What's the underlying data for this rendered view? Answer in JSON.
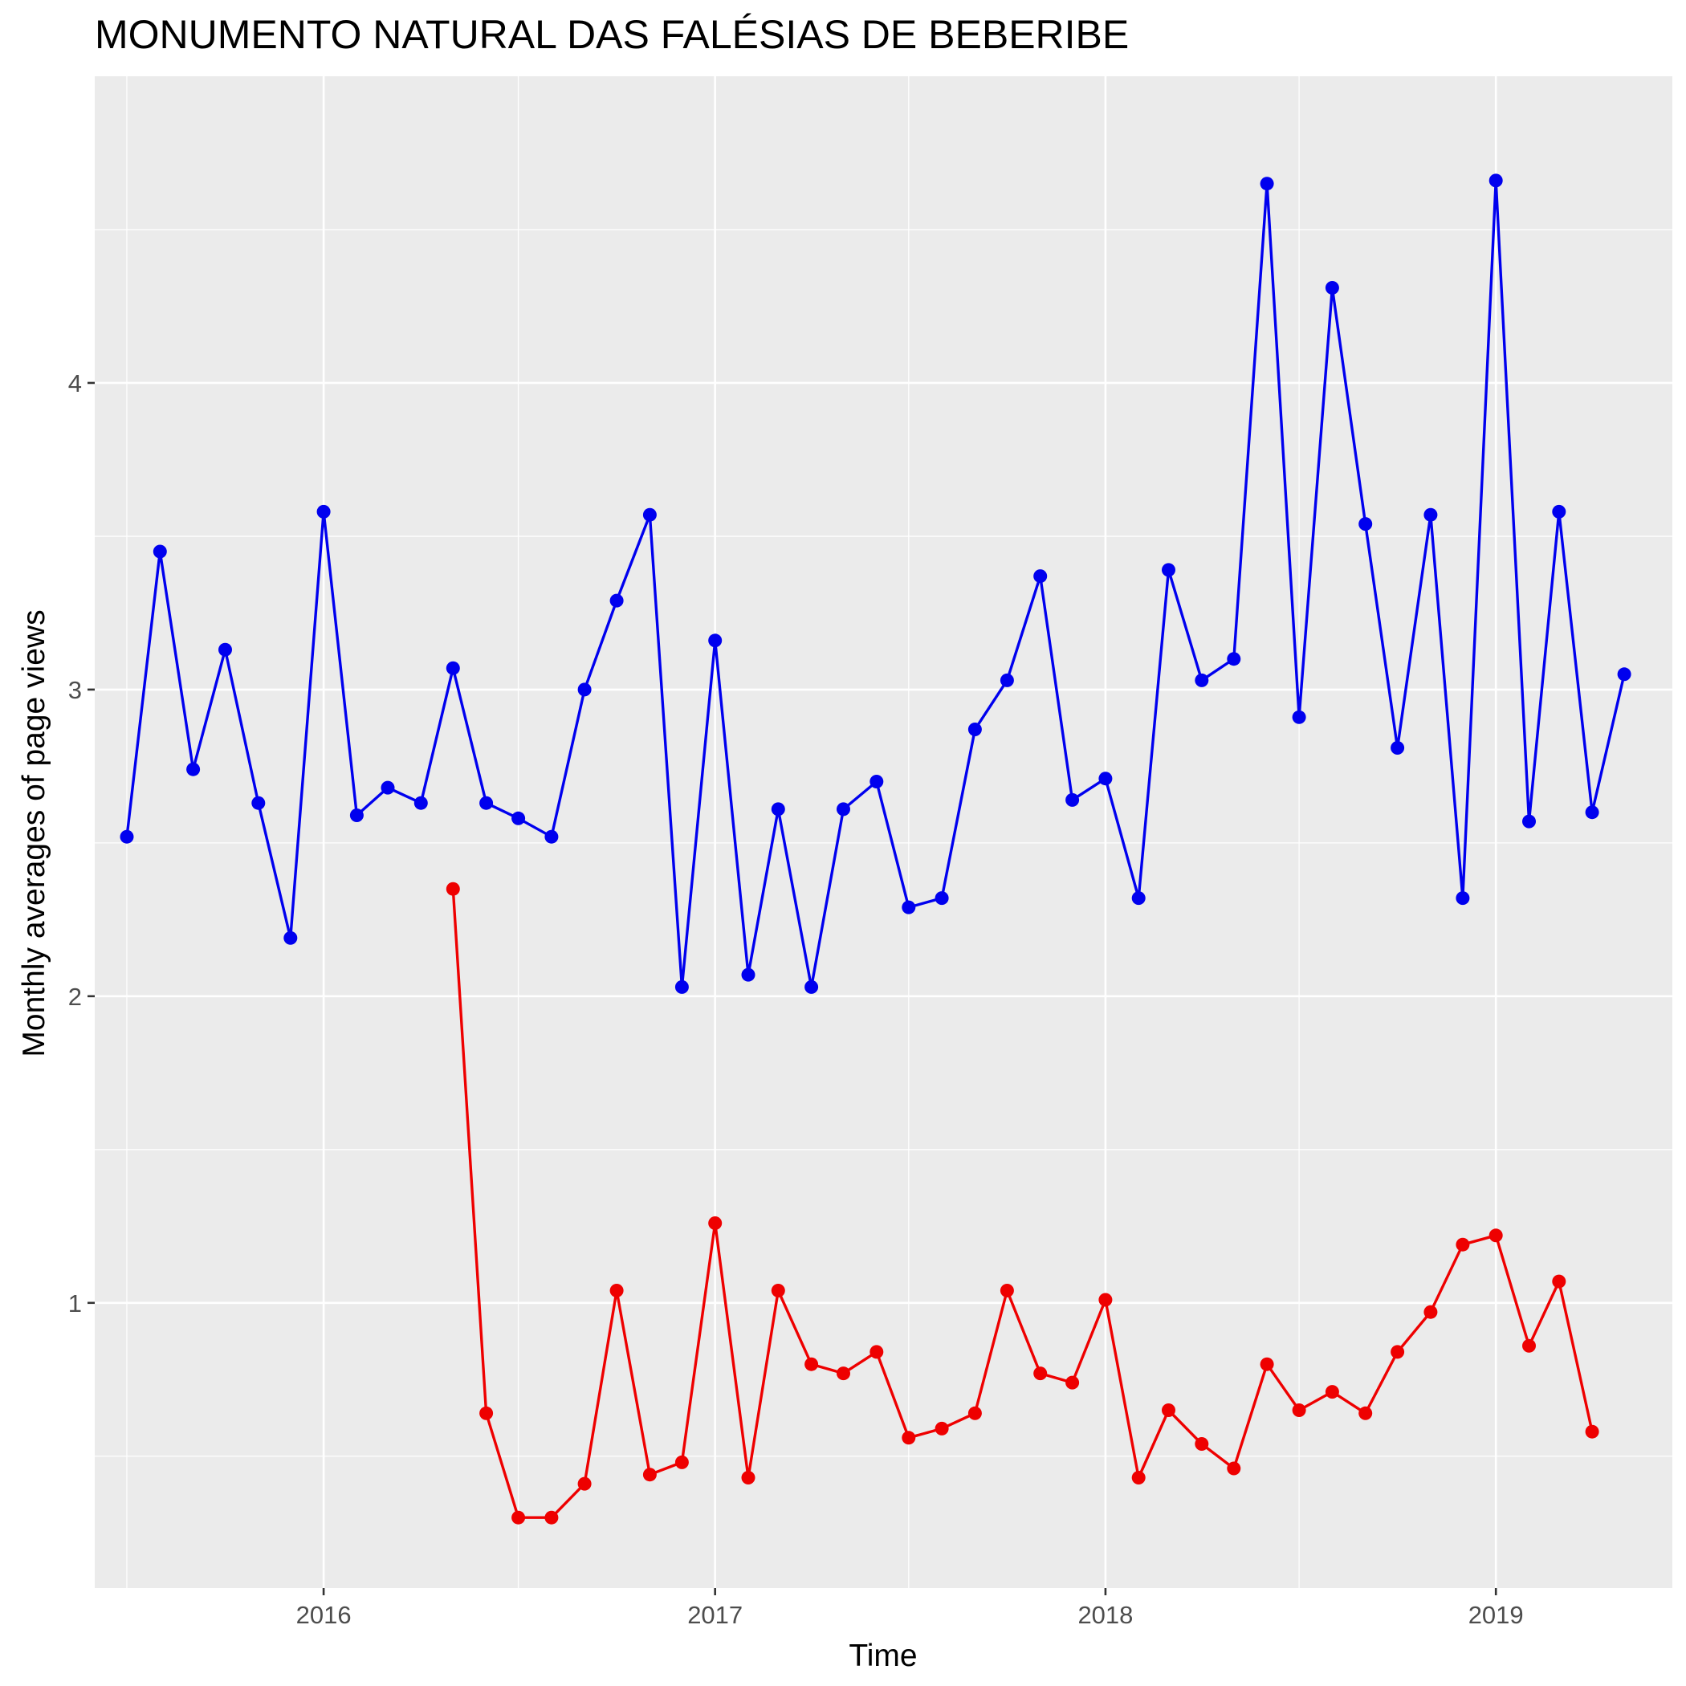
{
  "chart_data": {
    "type": "line",
    "title": "MONUMENTO NATURAL DAS FALÉSIAS DE BEBERIBE",
    "xlabel": "Time",
    "ylabel": "Monthly averages of page views",
    "xlim": [
      "2015-06-01",
      "2019-06-15"
    ],
    "ylim": [
      0.07,
      5.0
    ],
    "x_ticks": [
      "2016",
      "2017",
      "2018",
      "2019"
    ],
    "y_ticks": [
      "1",
      "2",
      "3",
      "4"
    ],
    "grid": true,
    "legend": "none",
    "series": [
      {
        "color": "#0000ee",
        "x": [
          "2015-07",
          "2015-08",
          "2015-09",
          "2015-10",
          "2015-11",
          "2015-12",
          "2016-01",
          "2016-02",
          "2016-03",
          "2016-04",
          "2016-05",
          "2016-06",
          "2016-07",
          "2016-08",
          "2016-09",
          "2016-10",
          "2016-11",
          "2016-12",
          "2017-01",
          "2017-02",
          "2017-03",
          "2017-04",
          "2017-05",
          "2017-06",
          "2017-07",
          "2017-08",
          "2017-09",
          "2017-10",
          "2017-11",
          "2017-12",
          "2018-01",
          "2018-02",
          "2018-03",
          "2018-04",
          "2018-05",
          "2018-06",
          "2018-07",
          "2018-08",
          "2018-09",
          "2018-10",
          "2018-11",
          "2018-12",
          "2019-01",
          "2019-02",
          "2019-03",
          "2019-04",
          "2019-05"
        ],
        "values": [
          2.52,
          3.45,
          2.74,
          3.13,
          2.63,
          2.19,
          3.58,
          2.59,
          2.68,
          2.63,
          3.07,
          2.63,
          2.58,
          2.52,
          3.0,
          3.29,
          3.57,
          2.03,
          3.16,
          2.07,
          2.61,
          2.03,
          2.61,
          2.7,
          2.29,
          2.32,
          2.87,
          3.03,
          3.37,
          2.64,
          2.71,
          2.32,
          3.39,
          3.03,
          3.1,
          4.65,
          2.91,
          4.31,
          3.54,
          2.81,
          3.57,
          2.32,
          4.66,
          2.57,
          3.58,
          2.6,
          3.05
        ]
      },
      {
        "color": "#ee0000",
        "x": [
          "2016-05",
          "2016-06",
          "2016-07",
          "2016-08",
          "2016-09",
          "2016-10",
          "2016-11",
          "2016-12",
          "2017-01",
          "2017-02",
          "2017-03",
          "2017-04",
          "2017-05",
          "2017-06",
          "2017-07",
          "2017-08",
          "2017-09",
          "2017-10",
          "2017-11",
          "2017-12",
          "2018-01",
          "2018-02",
          "2018-03",
          "2018-04",
          "2018-05",
          "2018-06",
          "2018-07",
          "2018-08",
          "2018-09",
          "2018-10",
          "2018-11",
          "2018-12",
          "2019-01",
          "2019-02",
          "2019-03",
          "2019-04"
        ],
        "values": [
          2.35,
          0.64,
          0.3,
          0.3,
          0.41,
          1.04,
          0.44,
          0.48,
          1.26,
          0.43,
          1.04,
          0.8,
          0.77,
          0.84,
          0.56,
          0.59,
          0.64,
          1.04,
          0.77,
          0.74,
          1.01,
          0.43,
          0.65,
          0.54,
          0.46,
          0.8,
          0.65,
          0.71,
          0.64,
          0.84,
          0.97,
          1.19,
          1.22,
          0.86,
          1.07,
          0.58
        ]
      }
    ]
  }
}
